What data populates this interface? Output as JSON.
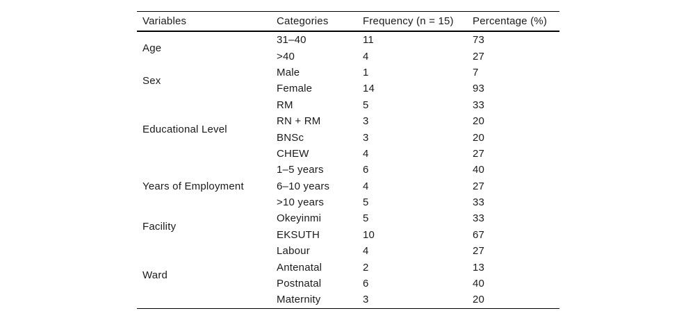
{
  "page": {
    "background": "#ffffff",
    "text_color": "#1a1a1a",
    "rule_color": "#000000"
  },
  "table": {
    "headers": [
      "Variables",
      "Categories",
      "Frequency (n = 15)",
      "Percentage (%)"
    ],
    "groups": [
      {
        "variable": "Age",
        "rows": [
          {
            "category": "31–40",
            "frequency": 11,
            "percentage": 73
          },
          {
            "category": ">40",
            "frequency": 4,
            "percentage": 27
          }
        ]
      },
      {
        "variable": "Sex",
        "rows": [
          {
            "category": "Male",
            "frequency": 1,
            "percentage": 7
          },
          {
            "category": "Female",
            "frequency": 14,
            "percentage": 93
          }
        ]
      },
      {
        "variable": "Educational Level",
        "rows": [
          {
            "category": "RM",
            "frequency": 5,
            "percentage": 33
          },
          {
            "category": "RN + RM",
            "frequency": 3,
            "percentage": 20
          },
          {
            "category": "BNSc",
            "frequency": 3,
            "percentage": 20
          },
          {
            "category": "CHEW",
            "frequency": 4,
            "percentage": 27
          }
        ]
      },
      {
        "variable": "Years of Employment",
        "rows": [
          {
            "category": "1–5 years",
            "frequency": 6,
            "percentage": 40
          },
          {
            "category": "6–10 years",
            "frequency": 4,
            "percentage": 27
          },
          {
            "category": ">10 years",
            "frequency": 5,
            "percentage": 33
          }
        ]
      },
      {
        "variable": "Facility",
        "rows": [
          {
            "category": "Okeyinmi",
            "frequency": 5,
            "percentage": 33
          },
          {
            "category": "EKSUTH",
            "frequency": 10,
            "percentage": 67
          }
        ]
      },
      {
        "variable": "Ward",
        "rows": [
          {
            "category": "Labour",
            "frequency": 4,
            "percentage": 27
          },
          {
            "category": "Antenatal",
            "frequency": 2,
            "percentage": 13
          },
          {
            "category": "Postnatal",
            "frequency": 6,
            "percentage": 40
          },
          {
            "category": "Maternity",
            "frequency": 3,
            "percentage": 20
          }
        ]
      }
    ]
  }
}
